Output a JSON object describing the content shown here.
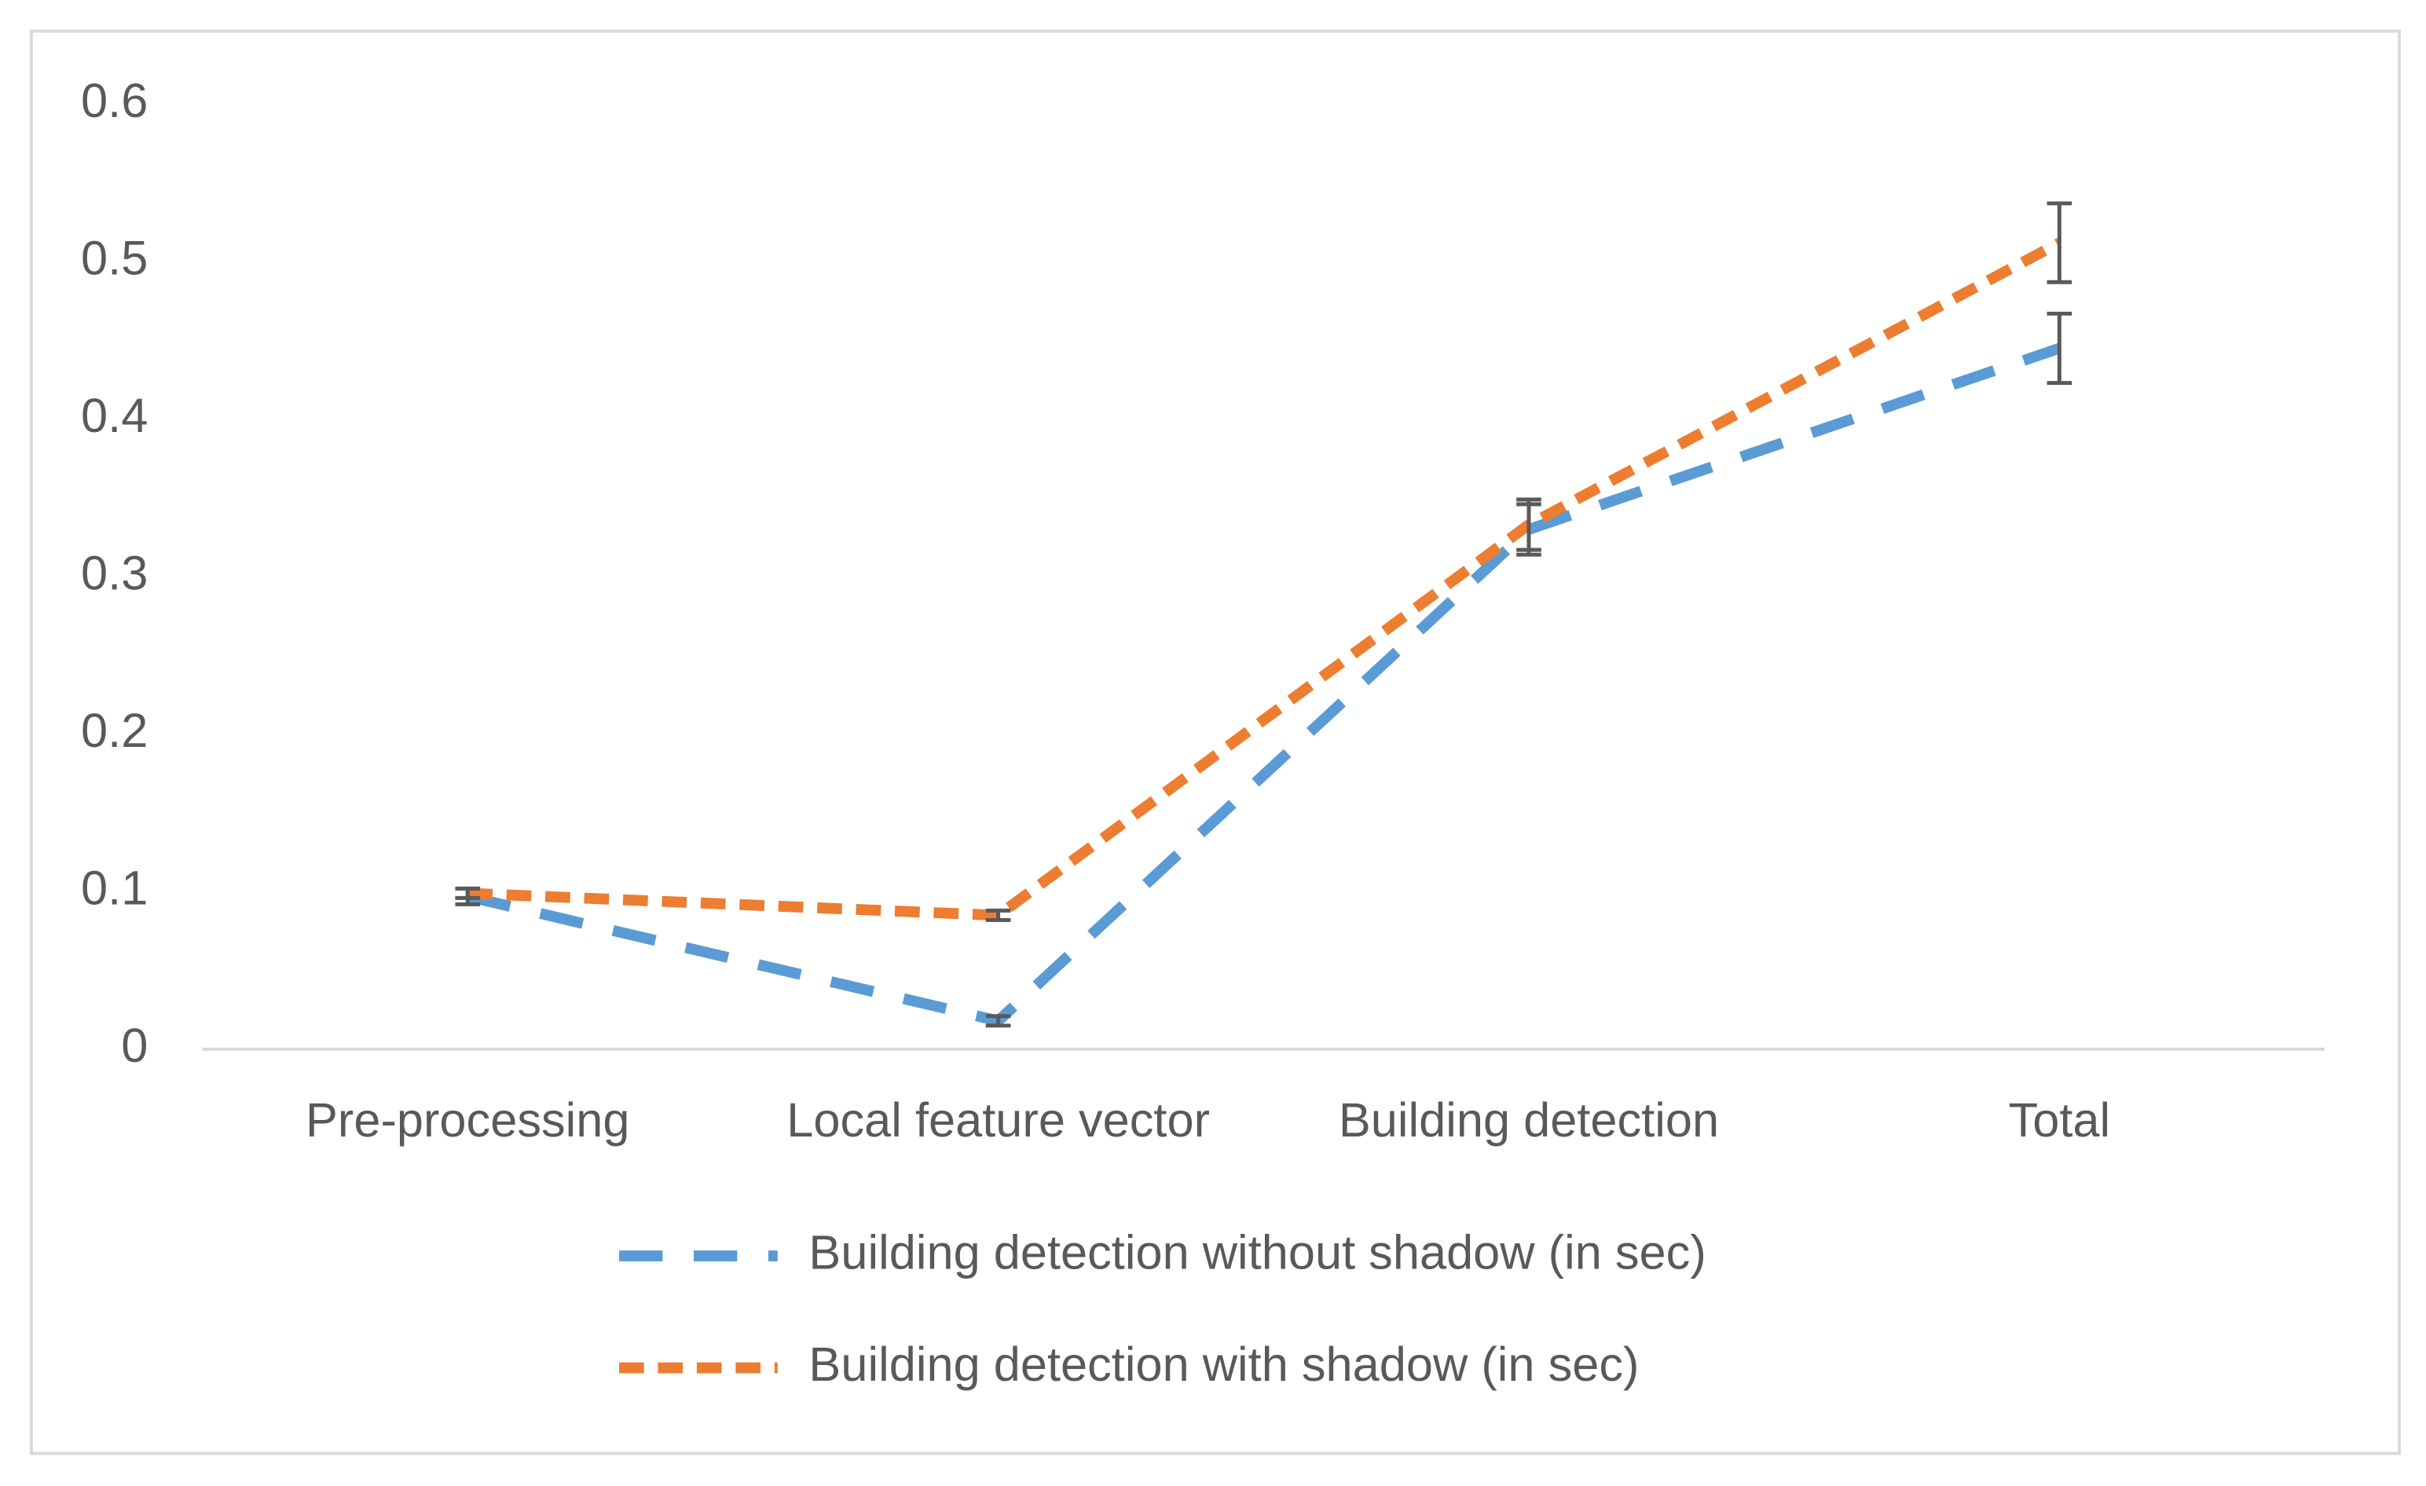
{
  "chart_data": {
    "type": "line",
    "categories": [
      "Pre-processing",
      "Local feature vector",
      "Building detection",
      "Total"
    ],
    "series": [
      {
        "name": "Building detection without shadow (in sec)",
        "color": "#5b9bd5",
        "dash": "long",
        "values": [
          0.097,
          0.018,
          0.33,
          0.445
        ],
        "errors": [
          0.005,
          0.003,
          0.016,
          0.022
        ]
      },
      {
        "name": "Building detection with shadow (in sec)",
        "color": "#ed7d31",
        "dash": "short",
        "values": [
          0.099,
          0.085,
          0.333,
          0.512
        ],
        "errors": [
          0.003,
          0.003,
          0.016,
          0.025
        ]
      }
    ],
    "ylim": [
      0,
      0.6
    ],
    "yticks": [
      0,
      0.1,
      0.2,
      0.3,
      0.4,
      0.5,
      0.6
    ],
    "grid": false,
    "legend": "bottom"
  }
}
